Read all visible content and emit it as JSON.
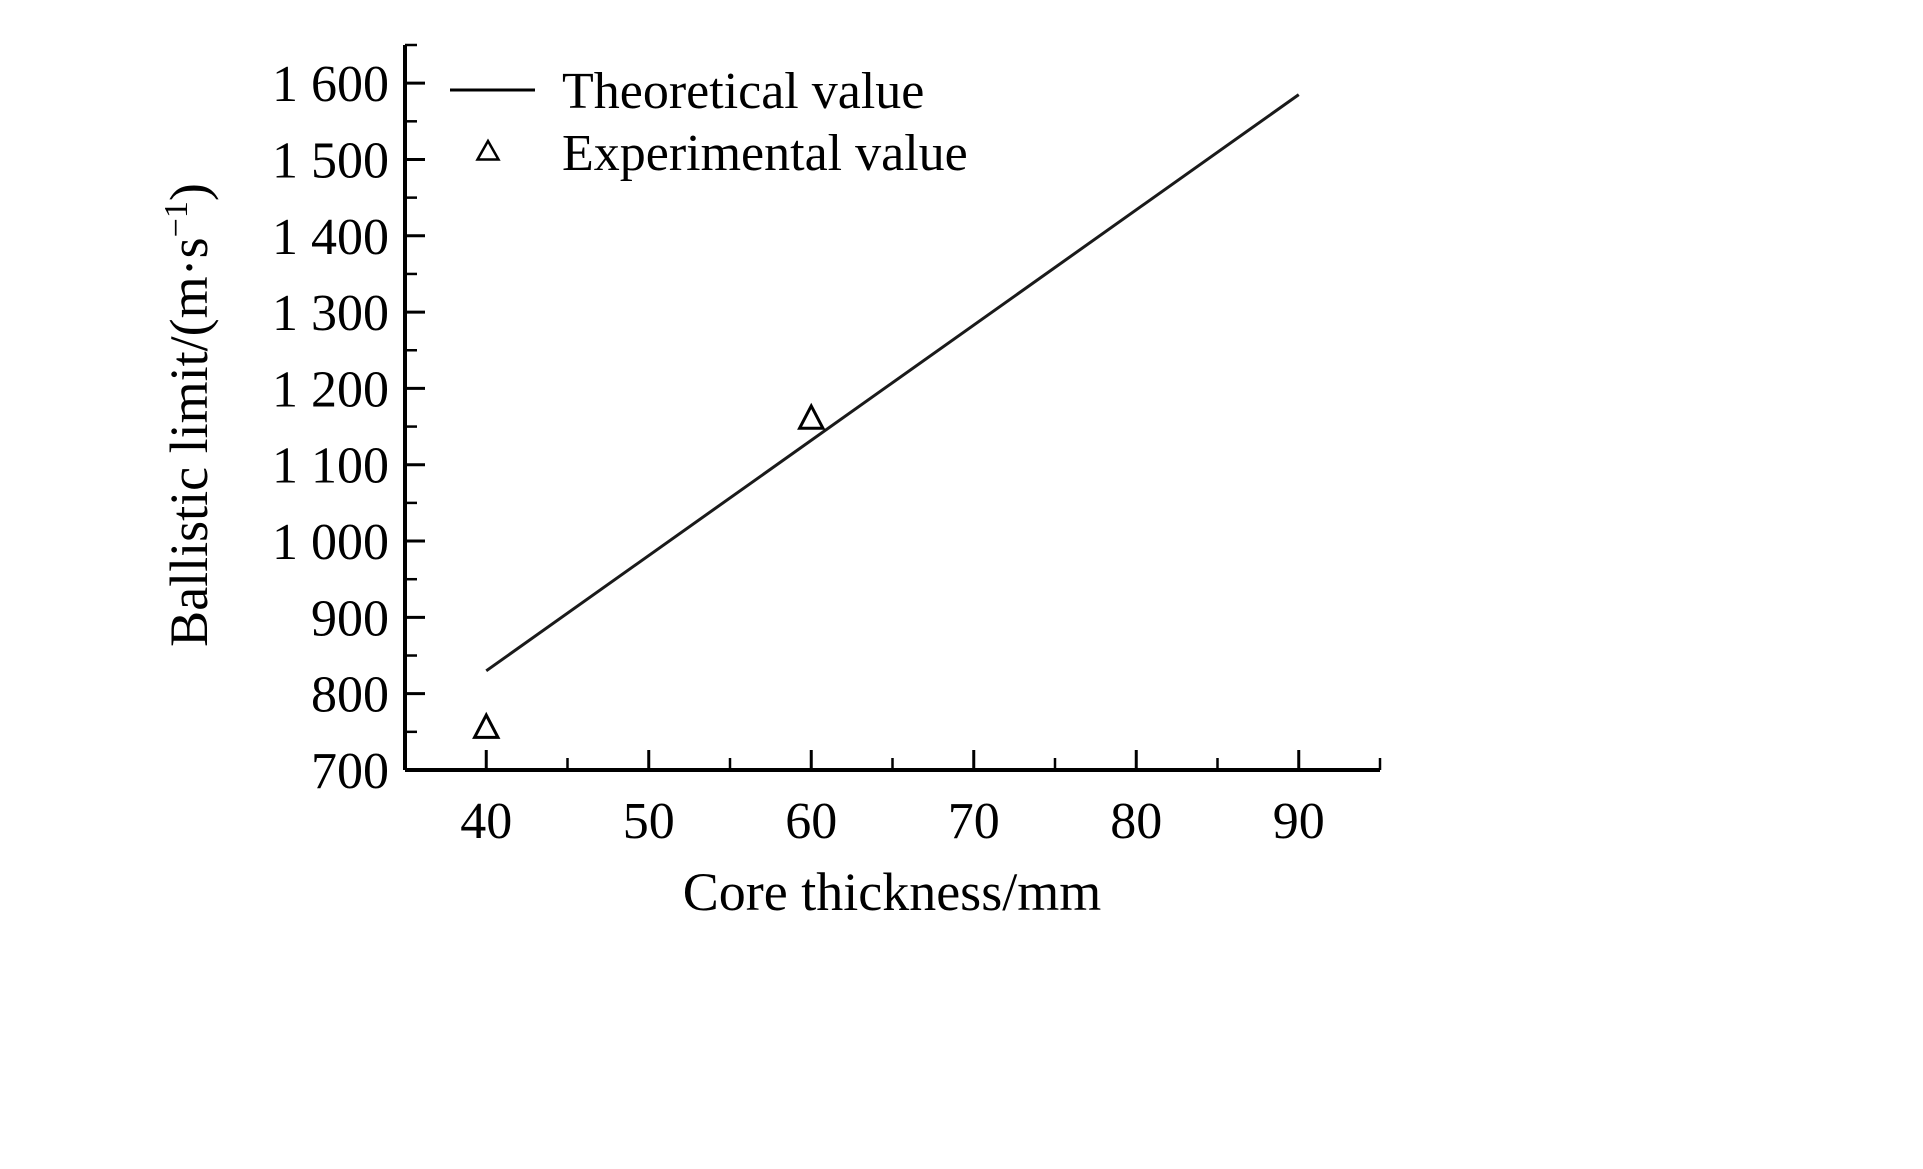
{
  "chart_data": {
    "type": "line",
    "title": "",
    "xlabel": "Core thickness/mm",
    "ylabel": {
      "prefix": "Ballistic limit/(m·s",
      "sup": "−1",
      "suffix": ")"
    },
    "xlim": [
      35,
      95
    ],
    "ylim": [
      700,
      1650
    ],
    "grid": false,
    "legend_position": "top-left-inside",
    "xticks": {
      "major": [
        40,
        50,
        60,
        70,
        80,
        90
      ],
      "labels": [
        "40",
        "50",
        "60",
        "70",
        "80",
        "90"
      ],
      "minor_step": 5
    },
    "yticks": {
      "major": [
        700,
        800,
        900,
        1000,
        1100,
        1200,
        1300,
        1400,
        1500,
        1600
      ],
      "labels": [
        "700",
        "800",
        "900",
        "1 000",
        "1 100",
        "1 200",
        "1 300",
        "1 400",
        "1 500",
        "1 600"
      ],
      "minor_step": 50
    },
    "series": [
      {
        "name": "Theoretical value",
        "type": "line",
        "points": [
          [
            40,
            830
          ],
          [
            90,
            1585
          ]
        ]
      },
      {
        "name": "Experimental value",
        "type": "scatter",
        "marker": "open-triangle",
        "points": [
          [
            40,
            755
          ],
          [
            60,
            1160
          ]
        ]
      }
    ],
    "colors": {
      "axis": "#000000",
      "line": "#1a1a1a",
      "marker_stroke": "#000000",
      "marker_fill": "#ffffff",
      "background": "#ffffff"
    }
  }
}
